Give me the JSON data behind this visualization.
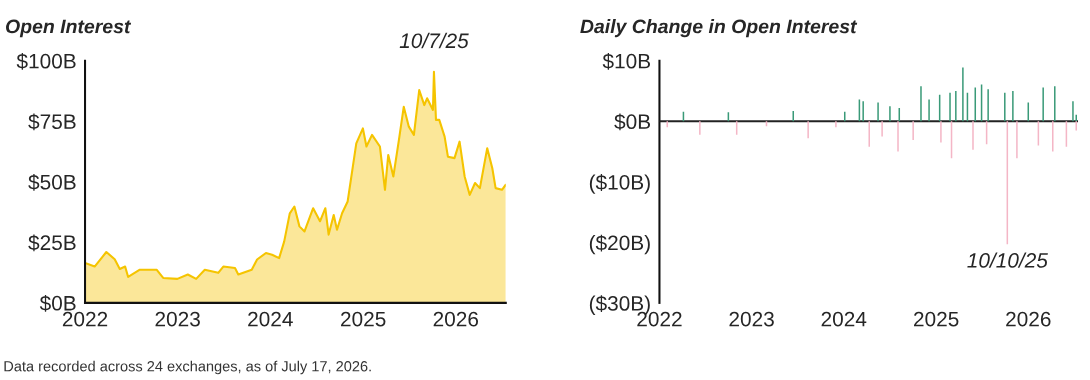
{
  "chart_data": [
    {
      "type": "area",
      "title": "Open Interest",
      "series": [
        {
          "color": "#f5c400",
          "x": [
            "2022-01-01",
            "2022-02-08",
            "2022-03-26",
            "2022-04-28",
            "2022-05-18",
            "2022-06-08",
            "2022-06-20",
            "2022-08-05",
            "2022-10-10",
            "2022-11-05",
            "2022-12-31",
            "2023-02-10",
            "2023-03-15",
            "2023-04-18",
            "2023-06-10",
            "2023-06-30",
            "2023-08-15",
            "2023-08-28",
            "2023-10-20",
            "2023-11-10",
            "2023-12-15",
            "2024-01-08",
            "2024-02-05",
            "2024-02-25",
            "2024-03-18",
            "2024-04-05",
            "2024-04-25",
            "2024-05-15",
            "2024-06-18",
            "2024-07-15",
            "2024-08-05",
            "2024-08-18",
            "2024-09-07",
            "2024-09-20",
            "2024-10-10",
            "2024-11-01",
            "2024-12-05",
            "2024-12-31",
            "2025-01-14",
            "2025-02-05",
            "2025-03-08",
            "2025-03-28",
            "2025-04-10",
            "2025-04-30",
            "2025-05-22",
            "2025-06-10",
            "2025-06-30",
            "2025-07-20",
            "2025-08-10",
            "2025-08-30",
            "2025-09-10",
            "2025-10-03",
            "2025-10-07",
            "2025-10-15",
            "2025-10-28",
            "2025-11-18",
            "2025-12-01",
            "2025-12-27",
            "2026-01-16",
            "2026-02-05",
            "2026-02-25",
            "2026-03-18",
            "2026-04-06",
            "2026-05-05",
            "2026-05-25",
            "2026-06-07",
            "2026-07-02",
            "2026-07-17"
          ],
          "values": [
            16.5,
            15,
            21,
            18,
            14,
            15,
            10.7,
            13.7,
            13.7,
            10.3,
            9.9,
            11.7,
            9.9,
            13.7,
            12.4,
            15,
            14.4,
            11.7,
            13.7,
            17.9,
            20.6,
            19.9,
            18.5,
            25.4,
            37,
            39.8,
            31.6,
            29.5,
            39.1,
            33.7,
            39.1,
            28.2,
            36.3,
            30.2,
            37,
            41.9,
            65.9,
            72.1,
            64.6,
            69.4,
            64.6,
            46.7,
            61.1,
            52.2,
            67.3,
            81,
            72.8,
            69.4,
            87.9,
            81.7,
            84.5,
            79.7,
            95.5,
            75.6,
            75.6,
            68.7,
            60.4,
            59.8,
            66.6,
            52.2,
            44.6,
            49.5,
            47.4,
            63.9,
            55.6,
            47.4,
            46.7,
            48.8
          ]
        }
      ],
      "xlim": [
        "2022",
        "2026-07-17"
      ],
      "xticks": [
        {
          "value": "2022",
          "label": "2022"
        },
        {
          "value": "2023",
          "label": "2023"
        },
        {
          "value": "2024",
          "label": "2024"
        },
        {
          "value": "2025",
          "label": "2025"
        },
        {
          "value": "2026",
          "label": "2026"
        }
      ],
      "ylim": [
        0,
        100
      ],
      "yticks": [
        {
          "value": 0,
          "label": "$0B"
        },
        {
          "value": 25,
          "label": "$25B"
        },
        {
          "value": 50,
          "label": "$50B"
        },
        {
          "value": 75,
          "label": "$75B"
        },
        {
          "value": 100,
          "label": "$100B"
        }
      ],
      "annotations": [
        {
          "text": "10/7/25",
          "x": "2025-10-07",
          "y": 95.5
        },
        "Data recorded across 24 exchanges, as of July 17, 2026."
      ]
    },
    {
      "type": "bar",
      "title": "Daily Change in Open Interest",
      "series": [
        {
          "color": "#3a9a78",
          "x": [
            "2022-04-06",
            "2022-10-01",
            "2023-06-15",
            "2024-01-05",
            "2024-03-03",
            "2024-03-18",
            "2024-05-16",
            "2024-07-02",
            "2024-08-08",
            "2024-11-02",
            "2024-12-04",
            "2025-01-15",
            "2025-02-25",
            "2025-03-20",
            "2025-04-17",
            "2025-05-05",
            "2025-06-05",
            "2025-06-30",
            "2025-07-26",
            "2025-09-30",
            "2025-11-01",
            "2026-01-01",
            "2026-03-01",
            "2026-04-16",
            "2026-06-27",
            "2026-07-10"
          ],
          "values": [
            1.6,
            1.5,
            1.7,
            1.6,
            3.6,
            3.3,
            3.1,
            2.5,
            2.2,
            5.8,
            3.6,
            4.4,
            4.7,
            5.0,
            8.9,
            4.7,
            5.6,
            6.1,
            5.3,
            4.7,
            5.0,
            3.1,
            5.6,
            5.8,
            3.3,
            1.1
          ]
        },
        {
          "color": "#f4b6c6",
          "x": [
            "2022-02-01",
            "2022-06-10",
            "2022-11-03",
            "2023-03-01",
            "2023-08-13",
            "2023-12-01",
            "2024-04-11",
            "2024-06-01",
            "2024-08-03",
            "2024-10-02",
            "2025-01-20",
            "2025-03-03",
            "2025-05-27",
            "2025-07-20",
            "2025-10-10",
            "2025-11-17",
            "2026-02-10",
            "2026-04-08",
            "2026-06-01",
            "2026-07-10"
          ],
          "values": [
            -1.0,
            -2.2,
            -2.2,
            -0.8,
            -2.8,
            -1.0,
            -4.2,
            -2.5,
            -5.0,
            -3.1,
            -3.5,
            -6.1,
            -4.7,
            -3.8,
            -20.3,
            -6.1,
            -4.0,
            -5.0,
            -4.2,
            -1.5
          ]
        }
      ],
      "xlim": [
        "2022",
        "2026-07-17"
      ],
      "xticks": [
        {
          "value": "2022",
          "label": "2022"
        },
        {
          "value": "2023",
          "label": "2023"
        },
        {
          "value": "2024",
          "label": "2024"
        },
        {
          "value": "2025",
          "label": "2025"
        },
        {
          "value": "2026",
          "label": "2026"
        }
      ],
      "ylim": [
        -30,
        10
      ],
      "yticks": [
        {
          "value": -30,
          "label": "($30B)"
        },
        {
          "value": -20,
          "label": "($20B)"
        },
        {
          "value": -10,
          "label": "($10B)"
        },
        {
          "value": 0,
          "label": "$0B"
        },
        {
          "value": 10,
          "label": "$10B"
        }
      ],
      "ref_lines": [
        {
          "axis": "y",
          "value": 0,
          "color": "#222222"
        }
      ],
      "annotations": [
        {
          "text": "10/10/25",
          "x": "2025-10-10",
          "y": -20.3
        }
      ]
    }
  ]
}
